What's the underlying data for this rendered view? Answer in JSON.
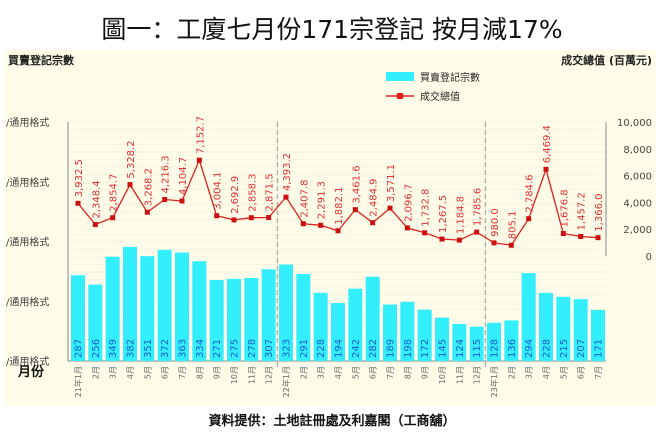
{
  "title": "圖一：工廈七月份171宗登記 按月減17%",
  "footer": "資料提供：土地註冊處及利嘉閣（工商舖）",
  "chart_data": {
    "type": "bar+line",
    "title": "圖一：工廈七月份171宗登記 按月減17%",
    "xlabel": "月份",
    "ylabel_left": "買賣登記宗數",
    "ylabel_right": "成交總值 (百萬元)",
    "left_tick_labels": [
      "/通用格式",
      "/通用格式",
      "/通用格式",
      "/通用格式",
      "/通用格式"
    ],
    "right_ticks": [
      "0",
      "2,000",
      "4,000",
      "6,000",
      "8,000",
      "10,000"
    ],
    "ylim_left": [
      0,
      800
    ],
    "ylim_right": [
      0,
      10000
    ],
    "legend_position": "top-center",
    "categories": [
      "21年1月",
      "2月",
      "3月",
      "4月",
      "5月",
      "6月",
      "7月",
      "8月",
      "9月",
      "10月",
      "11月",
      "12月",
      "22年1月",
      "2月",
      "3月",
      "4月",
      "5月",
      "6月",
      "7月",
      "8月",
      "9月",
      "10月",
      "11月",
      "12月",
      "23年1月",
      "2月",
      "3月",
      "4月",
      "5月",
      "6月",
      "7月"
    ],
    "series": [
      {
        "name": "買賣登記宗數",
        "type": "bar",
        "axis": "left",
        "color": "#33eefc",
        "values": [
          287,
          256,
          349,
          382,
          351,
          372,
          363,
          334,
          271,
          275,
          278,
          307,
          323,
          291,
          228,
          194,
          242,
          282,
          189,
          198,
          172,
          145,
          124,
          115,
          128,
          136,
          294,
          228,
          215,
          207,
          171
        ]
      },
      {
        "name": "成交總值",
        "type": "line",
        "axis": "right",
        "color": "#e0201c",
        "values": [
          3932.5,
          2348.4,
          2854.7,
          5328.2,
          3268.2,
          4216.3,
          4104.7,
          7152.7,
          3004.1,
          2692.9,
          2858.3,
          2871.5,
          4393.2,
          2407.8,
          2291.3,
          1882.1,
          3461.6,
          2484.9,
          3571.1,
          2096.7,
          1732.8,
          1267.5,
          1184.8,
          1785.6,
          980.0,
          805.1,
          2784.6,
          6469.4,
          1676.8,
          1457.2,
          1366.0
        ]
      }
    ]
  }
}
